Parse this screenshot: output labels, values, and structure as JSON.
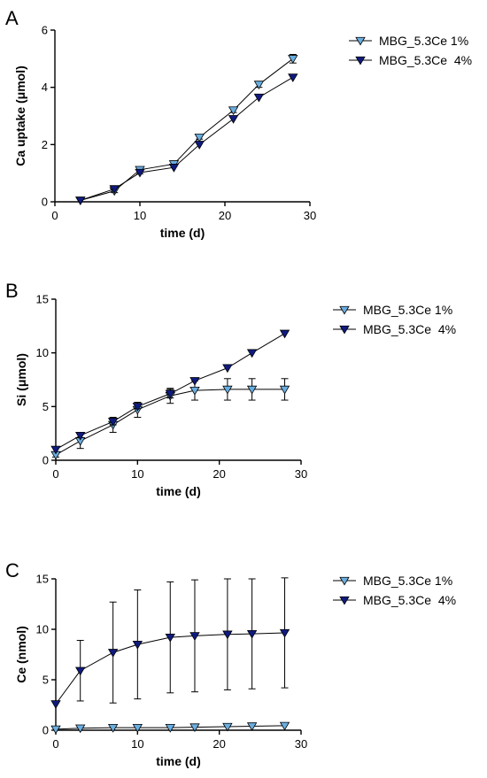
{
  "colors": {
    "series_1pct": "#6aaee0",
    "series_4pct": "#0f1a80",
    "axis": "#000000"
  },
  "chart_data": [
    {
      "panel_label": "A",
      "type": "line",
      "xlabel": "time (d)",
      "ylabel": "Ca uptake (μmol)",
      "xlim": [
        0,
        30
      ],
      "ylim": [
        0,
        6
      ],
      "xticks": [
        0,
        10,
        20,
        30
      ],
      "yticks": [
        0,
        2,
        4,
        6
      ],
      "legend_placement": "right",
      "series": [
        {
          "name": "MBG_5.3Ce 1%",
          "marker": "triangle-down",
          "x": [
            3,
            7,
            10,
            14,
            17,
            21,
            24,
            28
          ],
          "y": [
            0.05,
            0.38,
            1.12,
            1.32,
            2.25,
            3.2,
            4.1,
            5.0
          ],
          "err": [
            0,
            0.06,
            0.05,
            0.08,
            0.06,
            0.08,
            0.1,
            0.15
          ]
        },
        {
          "name": "MBG_5.3Ce  4%",
          "marker": "triangle-down",
          "x": [
            3,
            7,
            10,
            14,
            17,
            21,
            24,
            28
          ],
          "y": [
            0.05,
            0.45,
            1.02,
            1.2,
            2.0,
            2.9,
            3.65,
            4.35
          ],
          "err": [
            0,
            0,
            0.04,
            0,
            0,
            0,
            0,
            0
          ]
        }
      ]
    },
    {
      "panel_label": "B",
      "type": "line",
      "xlabel": "time (d)",
      "ylabel": "Si (μmol)",
      "xlim": [
        0,
        30
      ],
      "ylim": [
        0,
        15
      ],
      "xticks": [
        0,
        10,
        20,
        30
      ],
      "yticks": [
        0,
        5,
        10,
        15
      ],
      "legend_placement": "right",
      "series": [
        {
          "name": "MBG_5.3Ce 1%",
          "marker": "triangle-down",
          "x": [
            0,
            3,
            7,
            10,
            14,
            17,
            21,
            24,
            28
          ],
          "y": [
            0.5,
            1.8,
            3.3,
            4.7,
            6.0,
            6.5,
            6.6,
            6.6,
            6.6
          ],
          "err": [
            0.2,
            0.7,
            0.7,
            0.7,
            0.7,
            0.9,
            1.0,
            1.0,
            1.0
          ]
        },
        {
          "name": "MBG_5.3Ce  4%",
          "marker": "triangle-down",
          "x": [
            0,
            3,
            7,
            10,
            14,
            17,
            21,
            24,
            28
          ],
          "y": [
            1.0,
            2.3,
            3.6,
            5.0,
            6.2,
            7.4,
            8.6,
            10.0,
            11.8
          ],
          "err": [
            0,
            0.2,
            0.3,
            0.2,
            0.4,
            0,
            0,
            0,
            0
          ]
        }
      ]
    },
    {
      "panel_label": "C",
      "type": "line",
      "xlabel": "time (d)",
      "ylabel": "Ce (nmol)",
      "xlim": [
        0,
        30
      ],
      "ylim": [
        0,
        15
      ],
      "xticks": [
        0,
        10,
        20,
        30
      ],
      "yticks": [
        0,
        5,
        10,
        15
      ],
      "legend_placement": "right",
      "series": [
        {
          "name": "MBG_5.3Ce 1%",
          "marker": "triangle-down",
          "x": [
            0,
            3,
            7,
            10,
            14,
            17,
            21,
            24,
            28
          ],
          "y": [
            0.1,
            0.2,
            0.25,
            0.25,
            0.25,
            0.3,
            0.35,
            0.4,
            0.45
          ],
          "err": [
            0,
            0,
            0,
            0,
            0,
            0,
            0,
            0,
            0
          ]
        },
        {
          "name": "MBG_5.3Ce  4%",
          "marker": "triangle-down",
          "x": [
            0,
            3,
            7,
            10,
            14,
            17,
            21,
            24,
            28
          ],
          "y": [
            2.6,
            5.9,
            7.7,
            8.5,
            9.2,
            9.35,
            9.5,
            9.55,
            9.65
          ],
          "err": [
            0,
            3.0,
            5.0,
            5.4,
            5.5,
            5.55,
            5.5,
            5.45,
            5.45
          ]
        }
      ]
    }
  ]
}
